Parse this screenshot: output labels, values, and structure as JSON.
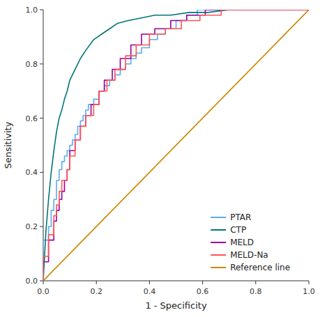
{
  "chart_data": {
    "type": "line",
    "xlabel": "1 - Specificity",
    "ylabel": "Sensitivity",
    "xlim": [
      0.0,
      1.0
    ],
    "ylim": [
      0.0,
      1.0
    ],
    "xticks": [
      {
        "value": 0.0,
        "label": "0.0"
      },
      0.2,
      0.4,
      0.6,
      0.8,
      {
        "value": 1.0,
        "label": "1.0"
      }
    ],
    "yticks": [
      {
        "value": 0.0,
        "label": "0.0"
      },
      0.2,
      0.4,
      0.6,
      0.8,
      {
        "value": 1.0,
        "label": "1.0"
      }
    ],
    "grid": false,
    "legend": "lower right",
    "series": [
      {
        "name": "PTAR",
        "color": "#5aacee",
        "x": [
          0.0,
          0.0,
          0.02,
          0.02,
          0.03,
          0.03,
          0.04,
          0.04,
          0.05,
          0.05,
          0.06,
          0.06,
          0.07,
          0.07,
          0.08,
          0.08,
          0.09,
          0.09,
          0.1,
          0.1,
          0.11,
          0.11,
          0.12,
          0.12,
          0.13,
          0.13,
          0.14,
          0.14,
          0.15,
          0.15,
          0.16,
          0.16,
          0.17,
          0.17,
          0.19,
          0.19,
          0.21,
          0.21,
          0.23,
          0.23,
          0.25,
          0.25,
          0.27,
          0.27,
          0.29,
          0.29,
          0.31,
          0.31,
          0.33,
          0.33,
          0.35,
          0.35,
          0.37,
          0.37,
          0.4,
          0.4,
          0.43,
          0.43,
          0.46,
          0.46,
          0.5,
          0.5,
          0.54,
          0.54,
          0.58,
          0.58,
          0.63,
          0.63,
          0.67,
          0.67,
          0.72,
          0.72,
          0.77,
          0.77,
          0.83,
          0.83,
          0.88,
          0.88,
          0.94,
          0.94,
          1.0
        ],
        "values": [
          0.0,
          0.15,
          0.15,
          0.2,
          0.2,
          0.26,
          0.26,
          0.3,
          0.3,
          0.37,
          0.37,
          0.41,
          0.41,
          0.44,
          0.44,
          0.46,
          0.46,
          0.48,
          0.48,
          0.5,
          0.5,
          0.52,
          0.52,
          0.54,
          0.54,
          0.57,
          0.57,
          0.59,
          0.59,
          0.61,
          0.61,
          0.63,
          0.63,
          0.65,
          0.65,
          0.67,
          0.67,
          0.7,
          0.7,
          0.72,
          0.72,
          0.74,
          0.74,
          0.76,
          0.76,
          0.78,
          0.78,
          0.8,
          0.8,
          0.82,
          0.82,
          0.84,
          0.84,
          0.86,
          0.86,
          0.89,
          0.89,
          0.91,
          0.91,
          0.93,
          0.93,
          0.96,
          0.96,
          0.98,
          0.98,
          1.0,
          1.0,
          1.0,
          1.0,
          1.0,
          1.0,
          1.0,
          1.0,
          1.0,
          1.0,
          1.0,
          1.0,
          1.0,
          1.0,
          1.0,
          1.0
        ]
      },
      {
        "name": "CTP",
        "color": "#007575",
        "x": [
          0.0,
          0.01,
          0.02,
          0.03,
          0.04,
          0.05,
          0.06,
          0.07,
          0.08,
          0.09,
          0.1,
          0.12,
          0.14,
          0.16,
          0.19,
          0.22,
          0.25,
          0.28,
          0.32,
          0.37,
          0.42,
          0.48,
          0.55,
          0.62,
          0.7,
          0.78,
          0.86,
          0.93,
          1.0
        ],
        "values": [
          0.0,
          0.18,
          0.3,
          0.4,
          0.48,
          0.55,
          0.6,
          0.63,
          0.67,
          0.7,
          0.74,
          0.78,
          0.82,
          0.85,
          0.89,
          0.91,
          0.93,
          0.95,
          0.96,
          0.97,
          0.98,
          0.98,
          0.99,
          0.99,
          1.0,
          1.0,
          1.0,
          1.0,
          1.0
        ]
      },
      {
        "name": "MELD",
        "color": "#990099",
        "x": [
          0.0,
          0.0,
          0.02,
          0.02,
          0.04,
          0.04,
          0.05,
          0.05,
          0.06,
          0.06,
          0.07,
          0.07,
          0.08,
          0.08,
          0.09,
          0.09,
          0.1,
          0.1,
          0.12,
          0.12,
          0.14,
          0.14,
          0.16,
          0.16,
          0.18,
          0.18,
          0.21,
          0.21,
          0.23,
          0.23,
          0.26,
          0.26,
          0.29,
          0.29,
          0.33,
          0.33,
          0.37,
          0.37,
          0.42,
          0.42,
          0.48,
          0.48,
          0.54,
          0.54,
          0.61,
          0.61,
          0.69,
          0.69,
          0.77,
          0.77,
          0.86,
          0.86,
          0.94,
          0.94,
          1.0
        ],
        "values": [
          0.0,
          0.07,
          0.07,
          0.15,
          0.15,
          0.22,
          0.22,
          0.26,
          0.26,
          0.3,
          0.3,
          0.33,
          0.33,
          0.37,
          0.37,
          0.41,
          0.41,
          0.48,
          0.48,
          0.52,
          0.52,
          0.57,
          0.57,
          0.61,
          0.61,
          0.65,
          0.65,
          0.7,
          0.7,
          0.74,
          0.74,
          0.78,
          0.78,
          0.82,
          0.82,
          0.87,
          0.87,
          0.91,
          0.91,
          0.93,
          0.93,
          0.96,
          0.96,
          0.98,
          0.98,
          1.0,
          1.0,
          1.0,
          1.0,
          1.0,
          1.0,
          1.0,
          1.0,
          1.0,
          1.0
        ]
      },
      {
        "name": "MELD-Na",
        "color": "#ff5555",
        "x": [
          0.0,
          0.0,
          0.02,
          0.02,
          0.04,
          0.04,
          0.05,
          0.05,
          0.06,
          0.06,
          0.07,
          0.07,
          0.09,
          0.09,
          0.1,
          0.1,
          0.12,
          0.12,
          0.14,
          0.14,
          0.16,
          0.16,
          0.19,
          0.19,
          0.21,
          0.21,
          0.24,
          0.24,
          0.27,
          0.27,
          0.31,
          0.31,
          0.35,
          0.35,
          0.4,
          0.4,
          0.46,
          0.46,
          0.52,
          0.52,
          0.59,
          0.59,
          0.67,
          0.67,
          0.75,
          0.75,
          0.84,
          0.84,
          0.92,
          0.92,
          1.0
        ],
        "values": [
          0.0,
          0.09,
          0.09,
          0.17,
          0.17,
          0.24,
          0.24,
          0.28,
          0.28,
          0.33,
          0.33,
          0.37,
          0.37,
          0.41,
          0.41,
          0.46,
          0.46,
          0.52,
          0.52,
          0.57,
          0.57,
          0.61,
          0.61,
          0.65,
          0.65,
          0.7,
          0.7,
          0.74,
          0.74,
          0.78,
          0.78,
          0.83,
          0.83,
          0.87,
          0.87,
          0.91,
          0.91,
          0.93,
          0.93,
          0.96,
          0.96,
          0.98,
          0.98,
          1.0,
          1.0,
          1.0,
          1.0,
          1.0,
          1.0,
          1.0,
          1.0
        ]
      },
      {
        "name": "Reference line",
        "color": "#cc8800",
        "x": [
          0,
          1
        ],
        "values": [
          0,
          1
        ]
      }
    ]
  }
}
